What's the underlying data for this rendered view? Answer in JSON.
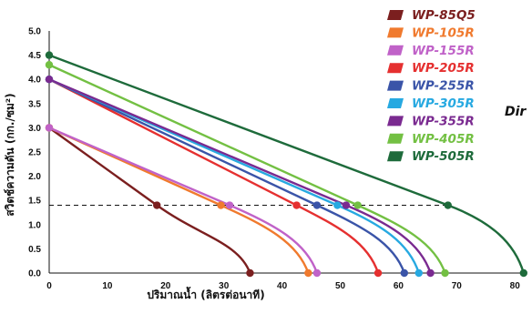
{
  "chart_data": {
    "type": "line",
    "xlabel": "ปริมาณน้ำ (ลิตรต่อนาที)",
    "ylabel": "สวิตช์ความดัน (กก./ซม²)",
    "xlim": [
      0,
      82
    ],
    "ylim": [
      0,
      5.0
    ],
    "xticks": [
      "0",
      "10",
      "20",
      "30",
      "40",
      "50",
      "60",
      "70",
      "80"
    ],
    "yticks": [
      "0.0",
      "0.5",
      "1.0",
      "1.5",
      "2.0",
      "2.5",
      "3.0",
      "3.5",
      "4.0",
      "4.5",
      "5.0"
    ],
    "grid": false,
    "legend_position": "top-right",
    "reference_line": {
      "y": 1.4,
      "style": "dashed"
    },
    "side_text": "Dir",
    "series": [
      {
        "name": "WP-85Q5",
        "color": "#7b1f1f",
        "points": [
          [
            0,
            3.0
          ],
          [
            18.5,
            1.4
          ],
          [
            34.5,
            0.0
          ]
        ]
      },
      {
        "name": "WP-105R",
        "color": "#f07a2e",
        "points": [
          [
            0,
            3.0
          ],
          [
            29.5,
            1.4
          ],
          [
            44.5,
            0.0
          ]
        ]
      },
      {
        "name": "WP-155R",
        "color": "#c062c8",
        "points": [
          [
            0,
            3.0
          ],
          [
            31.0,
            1.4
          ],
          [
            46.0,
            0.0
          ]
        ]
      },
      {
        "name": "WP-205R",
        "color": "#e53030",
        "points": [
          [
            0,
            4.0
          ],
          [
            42.5,
            1.4
          ],
          [
            56.5,
            0.0
          ]
        ]
      },
      {
        "name": "WP-255R",
        "color": "#3a54a8",
        "points": [
          [
            0,
            4.0
          ],
          [
            46.0,
            1.4
          ],
          [
            61.0,
            0.0
          ]
        ]
      },
      {
        "name": "WP-305R",
        "color": "#27a9e1",
        "points": [
          [
            0,
            4.0
          ],
          [
            49.5,
            1.4
          ],
          [
            63.5,
            0.0
          ]
        ]
      },
      {
        "name": "WP-355R",
        "color": "#7a2a90",
        "points": [
          [
            0,
            4.0
          ],
          [
            51.0,
            1.4
          ],
          [
            65.5,
            0.0
          ]
        ]
      },
      {
        "name": "WP-405R",
        "color": "#73c043",
        "points": [
          [
            0,
            4.3
          ],
          [
            53.0,
            1.4
          ],
          [
            68.0,
            0.0
          ]
        ]
      },
      {
        "name": "WP-505R",
        "color": "#1e6b3b",
        "points": [
          [
            0,
            4.5
          ],
          [
            68.5,
            1.4
          ],
          [
            81.5,
            0.0
          ]
        ]
      }
    ]
  }
}
